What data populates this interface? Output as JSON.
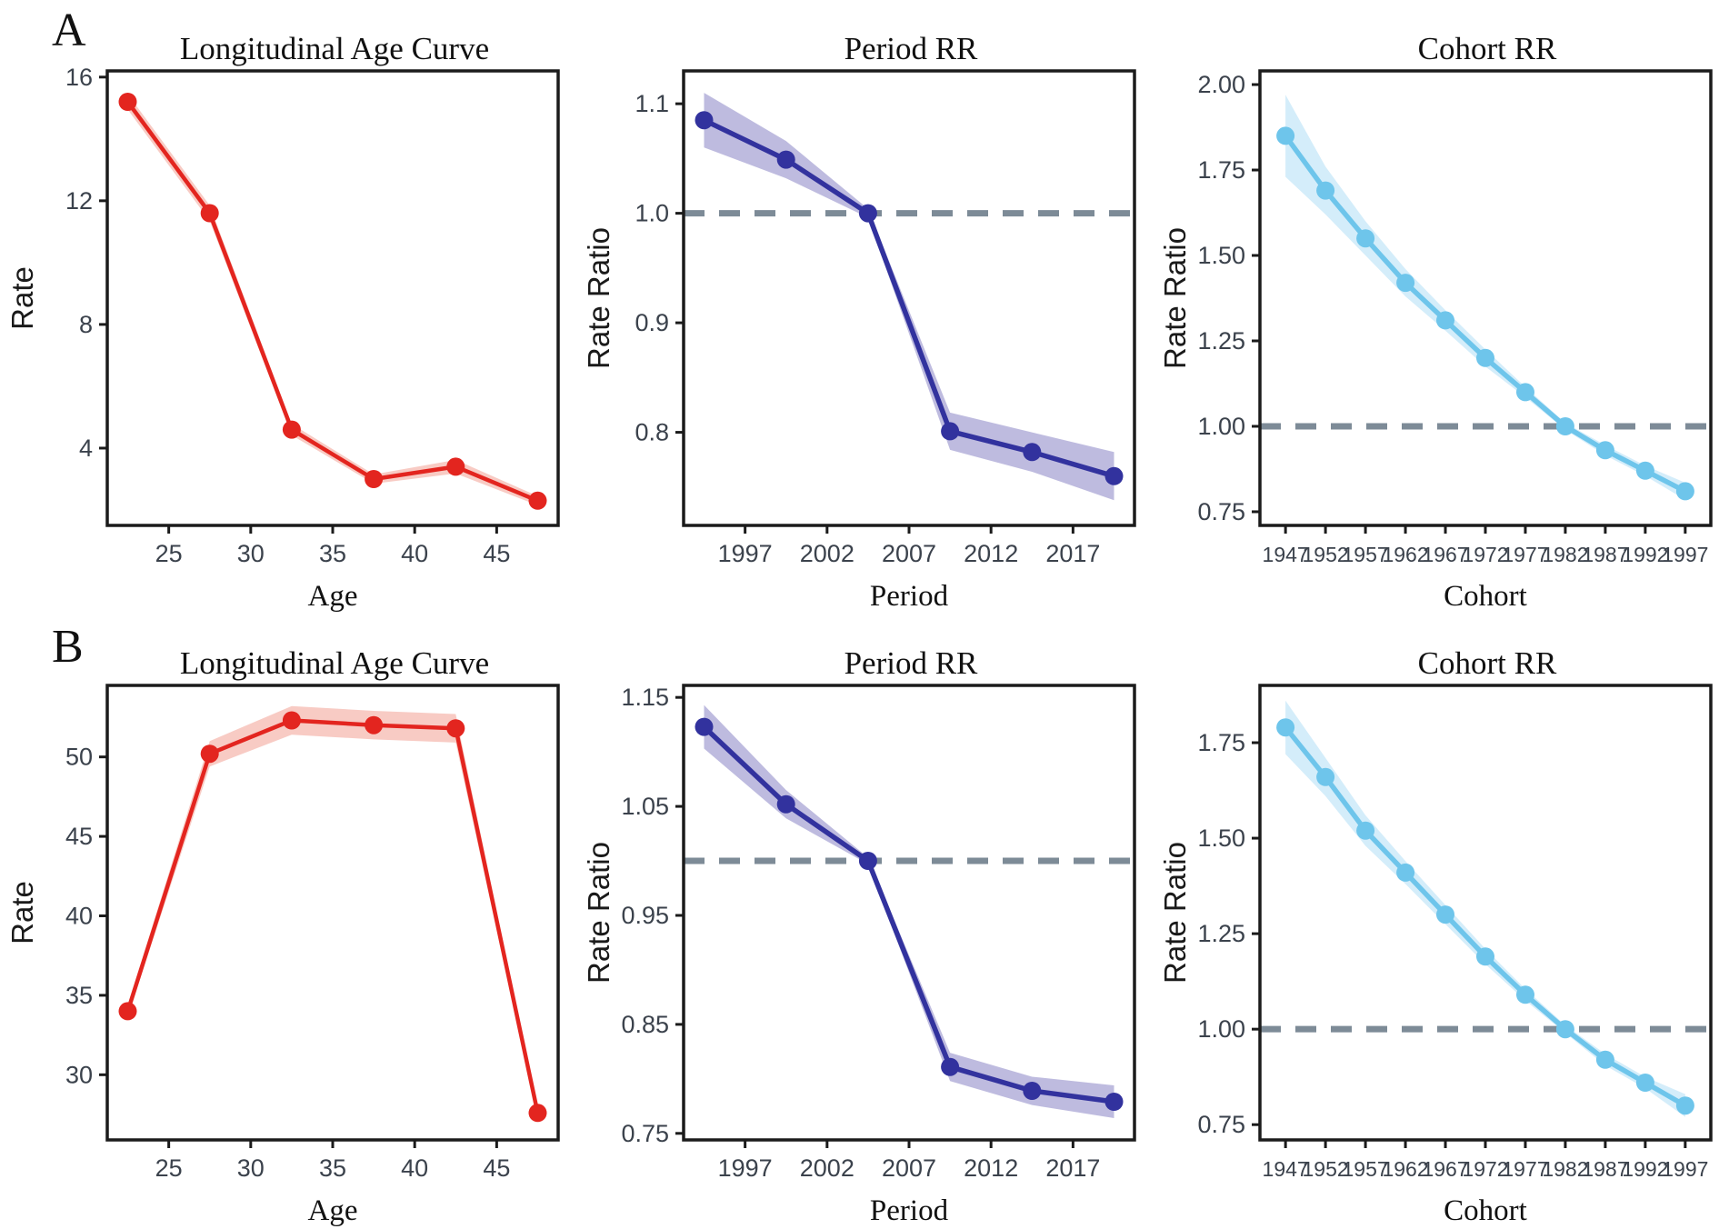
{
  "chart_meta": {
    "panel_labels": [
      "A",
      "B"
    ],
    "colors": {
      "axis_frame": "#1b1b1b",
      "tick_text": "#3b424c",
      "axis_title_text": "#1a1a1a",
      "title_text": "#111111",
      "reference_line": "#7d8b97",
      "background": "#ffffff",
      "red_series": "#e3251f",
      "red_band": "#e8543a",
      "navy_series": "#32329e",
      "navy_band": "#6f68b8",
      "sky_series": "#6ec5eb",
      "sky_band": "#aadcf5"
    }
  },
  "chart_data": [
    {
      "panel": "A",
      "type": "line",
      "title": "Longitudinal Age Curve",
      "xlabel": "Age",
      "ylabel": "Rate",
      "x": [
        22.5,
        27.5,
        32.5,
        37.5,
        42.5,
        47.5
      ],
      "values": [
        15.2,
        11.6,
        4.6,
        3.0,
        3.4,
        2.3
      ],
      "ci_upper": [
        15.45,
        11.85,
        4.78,
        3.15,
        3.62,
        2.45
      ],
      "ci_lower": [
        14.95,
        11.35,
        4.42,
        2.85,
        3.18,
        2.15
      ],
      "xticks": [
        25,
        30,
        35,
        40,
        45
      ],
      "xtick_labels": [
        "25",
        "30",
        "35",
        "40",
        "45"
      ],
      "yticks": [
        4,
        8,
        12,
        16
      ],
      "ytick_labels": [
        "4",
        "8",
        "12",
        "16"
      ],
      "xlim": [
        21.25,
        48.75
      ],
      "ylim": [
        1.5,
        16.2
      ],
      "ref_line": null,
      "line_color": "#e3251f",
      "band_color": "#e8543a",
      "band_opacity": 0.3,
      "legend": "none",
      "grid": "off"
    },
    {
      "panel": "A",
      "type": "line",
      "title": "Period RR",
      "xlabel": "Period",
      "ylabel": "Rate Ratio",
      "x": [
        1994.5,
        1999.5,
        2004.5,
        2009.5,
        2014.5,
        2019.5
      ],
      "values": [
        1.085,
        1.049,
        1.0,
        0.801,
        0.782,
        0.76
      ],
      "ci_upper": [
        1.11,
        1.066,
        1.004,
        0.818,
        0.8,
        0.782
      ],
      "ci_lower": [
        1.06,
        1.032,
        0.996,
        0.784,
        0.764,
        0.738
      ],
      "xticks": [
        1997,
        2002,
        2007,
        2012,
        2017
      ],
      "xtick_labels": [
        "1997",
        "2002",
        "2007",
        "2012",
        "2017"
      ],
      "yticks": [
        0.8,
        0.9,
        1.0,
        1.1
      ],
      "ytick_labels": [
        "0.8",
        "0.9",
        "1.0",
        "1.1"
      ],
      "xlim": [
        1993.25,
        2020.75
      ],
      "ylim": [
        0.715,
        1.13
      ],
      "ref_line": 1.0,
      "line_color": "#32329e",
      "band_color": "#6f68b8",
      "band_opacity": 0.45,
      "legend": "none",
      "grid": "off"
    },
    {
      "panel": "A",
      "type": "line",
      "title": "Cohort RR",
      "xlabel": "Cohort",
      "ylabel": "Rate Ratio",
      "x": [
        1947,
        1952,
        1957,
        1962,
        1967,
        1972,
        1977,
        1982,
        1987,
        1992,
        1997
      ],
      "values": [
        1.85,
        1.69,
        1.55,
        1.42,
        1.31,
        1.2,
        1.1,
        1.0,
        0.93,
        0.87,
        0.81
      ],
      "ci_upper": [
        1.97,
        1.76,
        1.6,
        1.46,
        1.34,
        1.225,
        1.115,
        1.01,
        0.945,
        0.885,
        0.835
      ],
      "ci_lower": [
        1.73,
        1.62,
        1.5,
        1.38,
        1.28,
        1.175,
        1.085,
        0.99,
        0.915,
        0.855,
        0.785
      ],
      "xticks": [
        1947,
        1952,
        1957,
        1962,
        1967,
        1972,
        1977,
        1982,
        1987,
        1992,
        1997
      ],
      "xtick_labels": [
        "1947",
        "1952",
        "1957",
        "1962",
        "1967",
        "1972",
        "1977",
        "1982",
        "1987",
        "1992",
        "1997"
      ],
      "xtick_font": 23,
      "yticks": [
        0.75,
        1.0,
        1.25,
        1.5,
        1.75,
        2.0
      ],
      "ytick_labels": [
        "0.75",
        "1.00",
        "1.25",
        "1.50",
        "1.75",
        "2.00"
      ],
      "xlim": [
        1943.8,
        2000.2
      ],
      "ylim": [
        0.71,
        2.04
      ],
      "ref_line": 1.0,
      "line_color": "#6ec5eb",
      "band_color": "#aadcf5",
      "band_opacity": 0.5,
      "legend": "none",
      "grid": "off"
    },
    {
      "panel": "B",
      "type": "line",
      "title": "Longitudinal Age Curve",
      "xlabel": "Age",
      "ylabel": "Rate",
      "x": [
        22.5,
        27.5,
        32.5,
        37.5,
        42.5,
        47.5
      ],
      "values": [
        34.0,
        50.2,
        52.3,
        52.0,
        51.8,
        27.6
      ],
      "ci_upper": [
        34.35,
        51.0,
        53.2,
        52.9,
        52.7,
        27.95
      ],
      "ci_lower": [
        33.65,
        49.4,
        51.4,
        51.1,
        50.9,
        27.25
      ],
      "xticks": [
        25,
        30,
        35,
        40,
        45
      ],
      "xtick_labels": [
        "25",
        "30",
        "35",
        "40",
        "45"
      ],
      "yticks": [
        30,
        35,
        40,
        45,
        50
      ],
      "ytick_labels": [
        "30",
        "35",
        "40",
        "45",
        "50"
      ],
      "xlim": [
        21.25,
        48.75
      ],
      "ylim": [
        25.9,
        54.5
      ],
      "ref_line": null,
      "line_color": "#e3251f",
      "band_color": "#e8543a",
      "band_opacity": 0.3,
      "legend": "none",
      "grid": "off"
    },
    {
      "panel": "B",
      "type": "line",
      "title": "Period RR",
      "xlabel": "Period",
      "ylabel": "Rate Ratio",
      "x": [
        1994.5,
        1999.5,
        2004.5,
        2009.5,
        2014.5,
        2019.5
      ],
      "values": [
        1.123,
        1.052,
        1.0,
        0.811,
        0.789,
        0.779
      ],
      "ci_upper": [
        1.143,
        1.065,
        1.003,
        0.824,
        0.802,
        0.794
      ],
      "ci_lower": [
        1.103,
        1.039,
        0.997,
        0.798,
        0.776,
        0.764
      ],
      "xticks": [
        1997,
        2002,
        2007,
        2012,
        2017
      ],
      "xtick_labels": [
        "1997",
        "2002",
        "2007",
        "2012",
        "2017"
      ],
      "yticks": [
        0.75,
        0.85,
        0.95,
        1.05,
        1.15
      ],
      "ytick_labels": [
        "0.75",
        "0.85",
        "0.95",
        "1.05",
        "1.15"
      ],
      "xlim": [
        1993.25,
        2020.75
      ],
      "ylim": [
        0.744,
        1.161
      ],
      "ref_line": 1.0,
      "line_color": "#32329e",
      "band_color": "#6f68b8",
      "band_opacity": 0.45,
      "legend": "none",
      "grid": "off"
    },
    {
      "panel": "B",
      "type": "line",
      "title": "Cohort RR",
      "xlabel": "Cohort",
      "ylabel": "Rate Ratio",
      "x": [
        1947,
        1952,
        1957,
        1962,
        1967,
        1972,
        1977,
        1982,
        1987,
        1992,
        1997
      ],
      "values": [
        1.79,
        1.66,
        1.52,
        1.41,
        1.3,
        1.19,
        1.09,
        1.0,
        0.92,
        0.86,
        0.8
      ],
      "ci_upper": [
        1.86,
        1.71,
        1.56,
        1.44,
        1.325,
        1.21,
        1.105,
        1.01,
        0.935,
        0.875,
        0.83
      ],
      "ci_lower": [
        1.72,
        1.61,
        1.48,
        1.38,
        1.275,
        1.17,
        1.075,
        0.99,
        0.905,
        0.845,
        0.77
      ],
      "xticks": [
        1947,
        1952,
        1957,
        1962,
        1967,
        1972,
        1977,
        1982,
        1987,
        1992,
        1997
      ],
      "xtick_labels": [
        "1947",
        "1952",
        "1957",
        "1962",
        "1967",
        "1972",
        "1977",
        "1982",
        "1987",
        "1992",
        "1997"
      ],
      "xtick_font": 23,
      "yticks": [
        0.75,
        1.0,
        1.25,
        1.5,
        1.75
      ],
      "ytick_labels": [
        "0.75",
        "1.00",
        "1.25",
        "1.50",
        "1.75"
      ],
      "xlim": [
        1943.8,
        2000.2
      ],
      "ylim": [
        0.71,
        1.9
      ],
      "ref_line": 1.0,
      "line_color": "#6ec5eb",
      "band_color": "#aadcf5",
      "band_opacity": 0.5,
      "legend": "none",
      "grid": "off"
    }
  ]
}
